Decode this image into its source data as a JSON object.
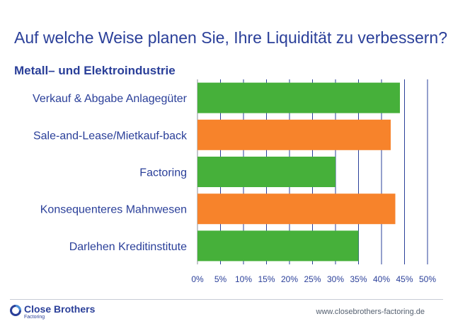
{
  "title": "Auf welche Weise planen Sie, Ihre Liquidität zu verbessern?",
  "subtitle": "Metall– und Elektroindustrie",
  "footer": {
    "brand": "Close Brothers",
    "brand_sub": "Factoring",
    "url": "www.closebrothers-factoring.de"
  },
  "colors": {
    "text": "#2a3f99",
    "green": "#46b03a",
    "orange": "#f7832b",
    "grid": "#2a3f99"
  },
  "chart_data": {
    "type": "bar",
    "orientation": "horizontal",
    "categories": [
      "Verkauf & Abgabe Anlagegüter",
      "Sale-and-Lease/Mietkauf-back",
      "Factoring",
      "Konsequenteres Mahnwesen",
      "Darlehen Kreditinstitute"
    ],
    "values": [
      44,
      42,
      30,
      43,
      35
    ],
    "bar_colors": [
      "#46b03a",
      "#f7832b",
      "#46b03a",
      "#f7832b",
      "#46b03a"
    ],
    "xlim": [
      0,
      50
    ],
    "x_ticks": [
      0,
      5,
      10,
      15,
      20,
      25,
      30,
      35,
      40,
      45,
      50
    ],
    "x_tick_labels": [
      "0%",
      "5%",
      "10%",
      "15%",
      "20%",
      "25%",
      "30%",
      "35%",
      "40%",
      "45%",
      "50%"
    ],
    "grid": "vertical",
    "legend": "none"
  }
}
